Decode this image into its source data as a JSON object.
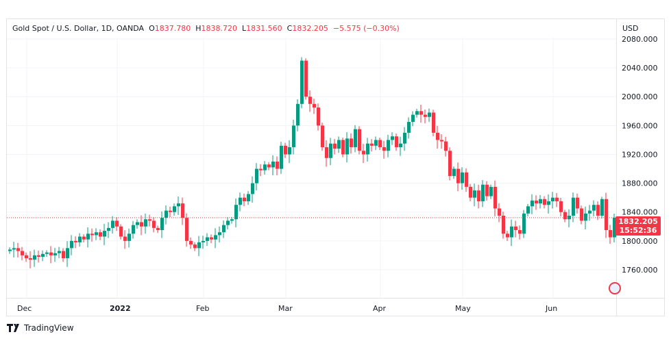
{
  "legend": {
    "symbol": "Gold Spot / U.S. Dollar, 1D, OANDA",
    "open_label": "O",
    "open": "1837.780",
    "high_label": "H",
    "high": "1838.720",
    "low_label": "L",
    "low": "1831.560",
    "close_label": "C",
    "close": "1832.205",
    "change": "−5.575 (−0.30%)"
  },
  "currency": "USD",
  "price_label": {
    "price": "1832.205",
    "countdown": "15:52:36"
  },
  "brand": "TradingView",
  "colors": {
    "up": "#089981",
    "down": "#f23645",
    "grid": "#f0f3fa"
  },
  "chart_data": {
    "type": "candlestick",
    "title": "Gold Spot / U.S. Dollar, 1D, OANDA",
    "ylabel": "USD",
    "ylim": [
      1720,
      2100
    ],
    "yticks": [
      "2080.000",
      "2040.000",
      "2000.000",
      "1960.000",
      "1920.000",
      "1880.000",
      "1840.000",
      "1800.000",
      "1760.000"
    ],
    "ytick_values": [
      2080,
      2040,
      2000,
      1960,
      1920,
      1880,
      1840,
      1800,
      1760
    ],
    "xticks": [
      {
        "label": "Dec",
        "index": 4,
        "bold": false
      },
      {
        "label": "2022",
        "index": 26,
        "bold": true
      },
      {
        "label": "Feb",
        "index": 47,
        "bold": false
      },
      {
        "label": "Mar",
        "index": 67,
        "bold": false
      },
      {
        "label": "Apr",
        "index": 90,
        "bold": false
      },
      {
        "label": "May",
        "index": 110,
        "bold": false
      },
      {
        "label": "Jun",
        "index": 132,
        "bold": false
      }
    ],
    "first_open": 1786,
    "closes": [
      1788,
      1790,
      1786,
      1780,
      1776,
      1774,
      1780,
      1778,
      1782,
      1784,
      1780,
      1783,
      1786,
      1776,
      1790,
      1800,
      1798,
      1806,
      1802,
      1810,
      1808,
      1812,
      1806,
      1814,
      1818,
      1828,
      1820,
      1806,
      1800,
      1810,
      1822,
      1826,
      1820,
      1830,
      1828,
      1818,
      1815,
      1832,
      1842,
      1840,
      1848,
      1852,
      1832,
      1800,
      1795,
      1790,
      1798,
      1800,
      1805,
      1802,
      1808,
      1812,
      1822,
      1828,
      1830,
      1850,
      1860,
      1855,
      1865,
      1880,
      1900,
      1898,
      1906,
      1902,
      1910,
      1900,
      1932,
      1920,
      1930,
      1960,
      1990,
      2050,
      2000,
      1990,
      1985,
      1960,
      1930,
      1915,
      1935,
      1928,
      1940,
      1920,
      1942,
      1930,
      1955,
      1925,
      1920,
      1935,
      1932,
      1940,
      1930,
      1925,
      1940,
      1945,
      1930,
      1935,
      1950,
      1965,
      1975,
      1980,
      1975,
      1972,
      1978,
      1950,
      1940,
      1938,
      1925,
      1890,
      1900,
      1880,
      1895,
      1875,
      1860,
      1870,
      1855,
      1878,
      1862,
      1875,
      1845,
      1835,
      1810,
      1805,
      1820,
      1815,
      1810,
      1838,
      1848,
      1856,
      1852,
      1858,
      1850,
      1855,
      1860,
      1855,
      1840,
      1830,
      1835,
      1860,
      1845,
      1828,
      1838,
      1842,
      1850,
      1835,
      1858,
      1815,
      1805,
      1832.205
    ],
    "last_price": 1832.205
  }
}
